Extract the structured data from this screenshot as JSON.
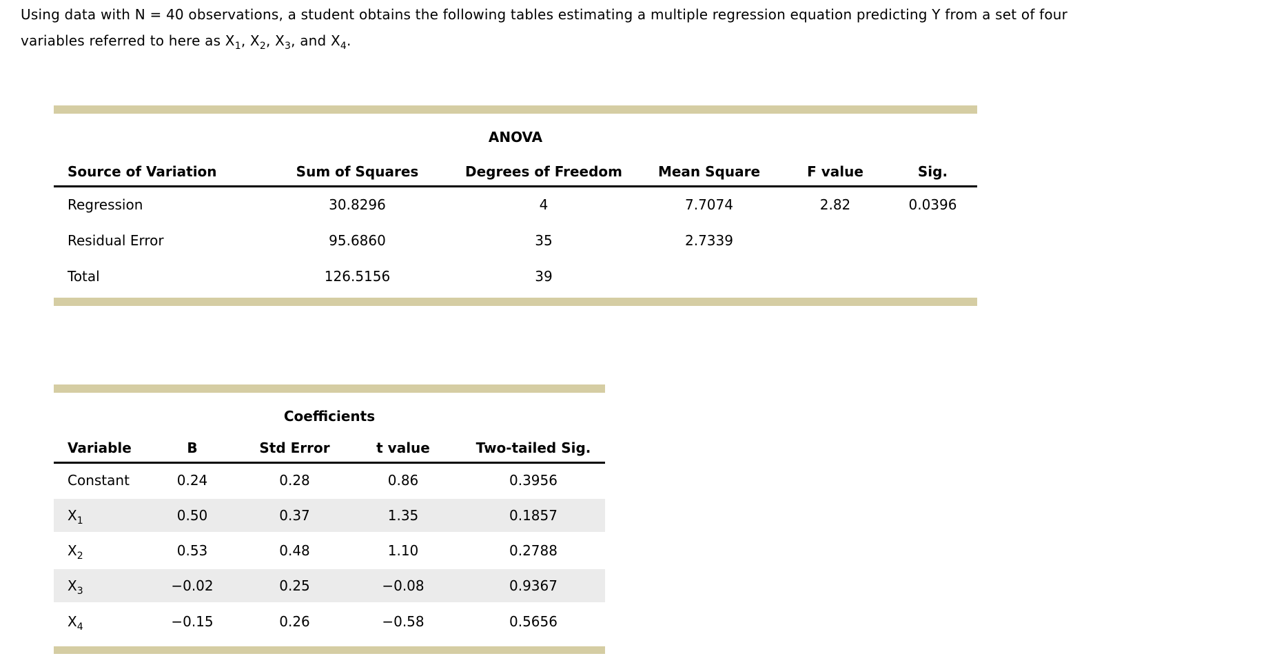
{
  "colors": {
    "accent_bar": "#d5cda3",
    "row_stripe": "#ebebeb",
    "text": "#000000",
    "background": "#ffffff"
  },
  "intro": {
    "line1": "Using data with N = 40 observations, a student obtains the following tables estimating a multiple regression equation predicting Y from a set of four",
    "line2": "variables referred to here as X₁, X₂, X₃, and X₄."
  },
  "anova_table": {
    "title": "ANOVA",
    "columns": [
      "Source of Variation",
      "Sum of Squares",
      "Degrees of Freedom",
      "Mean Square",
      "F value",
      "Sig."
    ],
    "rows": [
      {
        "source": "Regression",
        "sum_of_squares": "30.8296",
        "df": "4",
        "mean_square": "7.7074",
        "f_value": "2.82",
        "sig": "0.0396"
      },
      {
        "source": "Residual Error",
        "sum_of_squares": "95.6860",
        "df": "35",
        "mean_square": "2.7339",
        "f_value": "",
        "sig": ""
      },
      {
        "source": "Total",
        "sum_of_squares": "126.5156",
        "df": "39",
        "mean_square": "",
        "f_value": "",
        "sig": ""
      }
    ]
  },
  "coefficients_table": {
    "title": "Coefficients",
    "columns": [
      "Variable",
      "B",
      "Std Error",
      "t value",
      "Two-tailed Sig."
    ],
    "rows": [
      {
        "variable": "Constant",
        "b": "0.24",
        "std_error": "0.28",
        "t_value": "0.86",
        "sig": "0.3956"
      },
      {
        "variable": "X₁",
        "b": "0.50",
        "std_error": "0.37",
        "t_value": "1.35",
        "sig": "0.1857"
      },
      {
        "variable": "X₂",
        "b": "0.53",
        "std_error": "0.48",
        "t_value": "1.10",
        "sig": "0.2788"
      },
      {
        "variable": "X₃",
        "b": "−0.02",
        "std_error": "0.25",
        "t_value": "−0.08",
        "sig": "0.9367"
      },
      {
        "variable": "X₄",
        "b": "−0.15",
        "std_error": "0.26",
        "t_value": "−0.58",
        "sig": "0.5656"
      }
    ]
  }
}
